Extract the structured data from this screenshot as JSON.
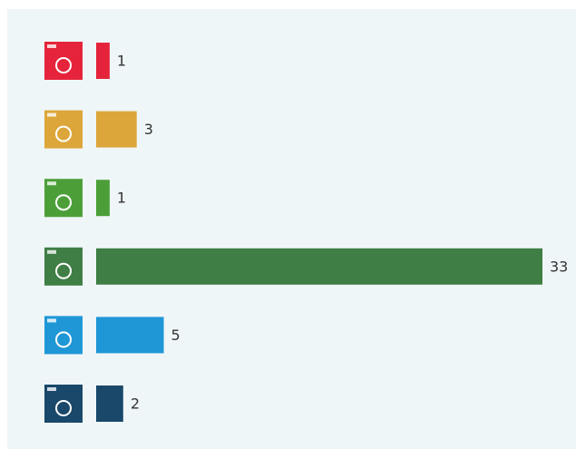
{
  "chart_data": {
    "type": "hbar",
    "categories": [
      null,
      null,
      null,
      null,
      null,
      null
    ],
    "values": [
      1,
      3,
      1,
      33,
      5,
      2
    ],
    "colors": [
      "#e5243b",
      "#dda63a",
      "#4c9f38",
      "#3f7e44",
      "#1f97d6",
      "#19486a"
    ]
  }
}
